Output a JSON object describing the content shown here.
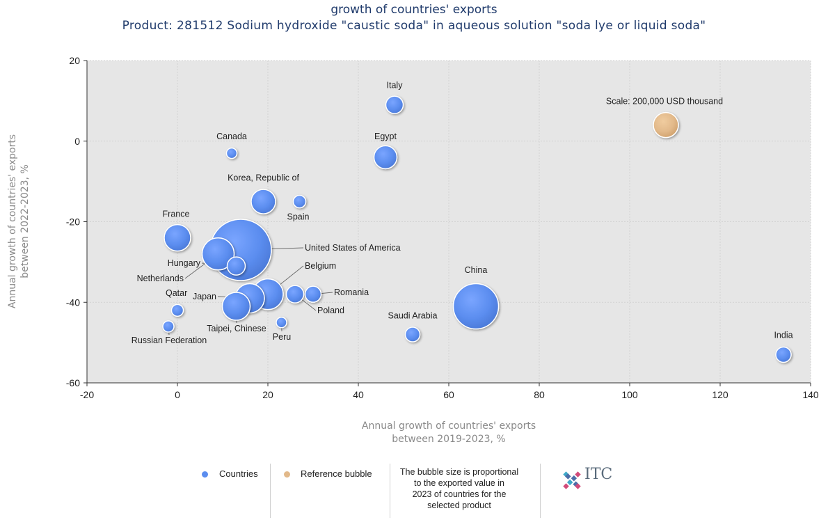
{
  "chart_data": {
    "type": "scatter",
    "title": "growth of countries' exports",
    "subtitle": "Product: 281512 Sodium hydroxide \"caustic soda\" in aqueous solution \"soda lye or liquid soda\"",
    "xlabel_lines": [
      "Annual growth of countries' exports",
      "between 2019-2023, %"
    ],
    "ylabel_lines": [
      "Annual growth of countries' exports",
      "between 2022-2023, %"
    ],
    "xlim": [
      -20,
      140
    ],
    "ylim": [
      -60,
      20
    ],
    "xticks": [
      -20,
      0,
      20,
      40,
      60,
      80,
      100,
      120,
      140
    ],
    "yticks": [
      20,
      0,
      -20,
      -40,
      -60
    ],
    "grid": true,
    "colors": {
      "countries": "#5b8def",
      "reference": "#e2b98a",
      "plot_bg": "#e6e6e6"
    },
    "points": [
      {
        "name": "Italy",
        "x": 48,
        "y": 9,
        "size": 25
      },
      {
        "name": "Egypt",
        "x": 46,
        "y": -4,
        "size": 33
      },
      {
        "name": "Canada",
        "x": 12,
        "y": -3,
        "size": 15
      },
      {
        "name": "Korea, Republic of",
        "x": 19,
        "y": -15,
        "size": 35
      },
      {
        "name": "Spain",
        "x": 27,
        "y": -15,
        "size": 18
      },
      {
        "name": "France",
        "x": 0,
        "y": -24,
        "size": 38
      },
      {
        "name": "United States of America",
        "x": 14,
        "y": -27,
        "size": 88
      },
      {
        "name": "Netherlands",
        "x": 9,
        "y": -28,
        "size": 46
      },
      {
        "name": "Hungary",
        "x": 13,
        "y": -31,
        "size": 26
      },
      {
        "name": "Belgium",
        "x": 20,
        "y": -38,
        "size": 44
      },
      {
        "name": "Romania",
        "x": 30,
        "y": -38,
        "size": 23
      },
      {
        "name": "Poland",
        "x": 26,
        "y": -38,
        "size": 25
      },
      {
        "name": "Japan",
        "x": 16,
        "y": -39,
        "size": 42
      },
      {
        "name": "Qatar",
        "x": 0,
        "y": -42,
        "size": 17
      },
      {
        "name": "Taipei, Chinese",
        "x": 13,
        "y": -41,
        "size": 40
      },
      {
        "name": "Peru",
        "x": 23,
        "y": -45,
        "size": 15
      },
      {
        "name": "Russian Federation",
        "x": -2,
        "y": -46,
        "size": 16
      },
      {
        "name": "China",
        "x": 66,
        "y": -41,
        "size": 65
      },
      {
        "name": "Saudi Arabia",
        "x": 52,
        "y": -48,
        "size": 21
      },
      {
        "name": "India",
        "x": 134,
        "y": -53,
        "size": 22
      }
    ],
    "reference_bubble": {
      "label": "Scale: 200,000 USD thousand",
      "x": 108,
      "y": 4,
      "size": 36
    }
  },
  "legend": {
    "countries_label": "Countries",
    "reference_label": "Reference bubble",
    "note_lines": [
      "The bubble size is proportional",
      "to the exported value in",
      "2023 of countries for the",
      "selected product"
    ],
    "logo_text": "ITC"
  }
}
